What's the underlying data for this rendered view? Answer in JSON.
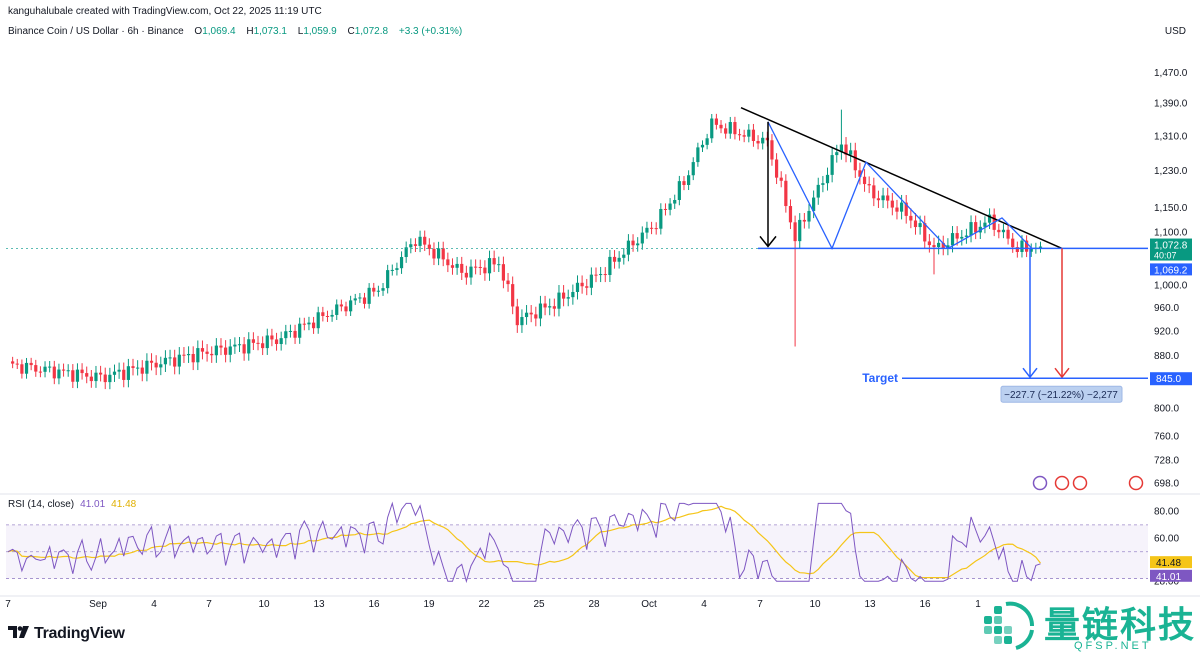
{
  "header": {
    "credit": "kanguhalubale created with TradingView.com, Oct 22, 2025 11:19 UTC",
    "symbol": "Binance Coin / US Dollar · 6h · Binance",
    "open_label": "O",
    "open": "1,069.4",
    "high_label": "H",
    "high": "1,073.1",
    "low_label": "L",
    "low": "1,059.9",
    "close_label": "C",
    "close": "1,072.8",
    "change": "+3.3 (+0.31%)",
    "currency": "USD"
  },
  "rsi": {
    "label": "RSI (14, close)",
    "value": "41.01",
    "ma_value": "41.48"
  },
  "annotations": {
    "target_label": "Target",
    "measure_label": "−227.7 (−21.22%) −2,277"
  },
  "branding": {
    "logo_text": "TradingView",
    "watermark_cn": "量链科技",
    "watermark_en": "QFSP.NET"
  },
  "colors": {
    "up": "#089981",
    "down": "#f23645",
    "pattern": "#2962ff",
    "rsi": "#7e57c2",
    "rsi_ma": "#f5c518"
  },
  "chart_data": [
    {
      "type": "candlestick",
      "title": "Binance Coin / US Dollar · 6h · Binance",
      "ylabel": "USD",
      "y_scale": "log",
      "ylim": [
        690,
        1560
      ],
      "y_ticks": [
        "1,470.0",
        "1,390.0",
        "1,310.0",
        "1,230.0",
        "1,150.0",
        "1,100.0",
        "1,000.0",
        "960.0",
        "920.0",
        "880.0",
        "845.0",
        "800.0",
        "760.0",
        "728.0",
        "698.0"
      ],
      "y_tick_values": [
        1470,
        1390,
        1310,
        1230,
        1150,
        1100,
        1000,
        960,
        920,
        880,
        845,
        800,
        760,
        728,
        698
      ],
      "x_ticks": [
        "7",
        "Sep",
        "4",
        "7",
        "10",
        "13",
        "16",
        "19",
        "22",
        "25",
        "28",
        "Oct",
        "4",
        "7",
        "10",
        "13",
        "16",
        "1"
      ],
      "price_labels": [
        {
          "label": "1,072.8",
          "value": 1072.8,
          "sublabel": "40:07",
          "kind": "last"
        },
        {
          "label": "1,069.2",
          "value": 1069.2,
          "kind": "neckline"
        },
        {
          "label": "845.0",
          "value": 845.0,
          "kind": "target"
        }
      ],
      "key_points": [
        {
          "index": 0,
          "value": 866
        },
        {
          "index": 20,
          "value": 846
        },
        {
          "index": 40,
          "value": 882
        },
        {
          "index": 58,
          "value": 906
        },
        {
          "index": 80,
          "value": 992
        },
        {
          "index": 88,
          "value": 1088
        },
        {
          "index": 98,
          "value": 1023
        },
        {
          "index": 106,
          "value": 1042
        },
        {
          "index": 110,
          "value": 938
        },
        {
          "index": 118,
          "value": 968
        },
        {
          "index": 128,
          "value": 1022
        },
        {
          "index": 140,
          "value": 1120
        },
        {
          "index": 146,
          "value": 1205
        },
        {
          "index": 152,
          "value": 1340
        },
        {
          "index": 164,
          "value": 1295
        },
        {
          "index": 170,
          "value": 1090
        },
        {
          "index": 176,
          "value": 1210
        },
        {
          "index": 180,
          "value": 1295
        },
        {
          "index": 186,
          "value": 1185
        },
        {
          "index": 194,
          "value": 1140
        },
        {
          "index": 200,
          "value": 1068
        },
        {
          "index": 208,
          "value": 1105
        },
        {
          "index": 212,
          "value": 1125
        },
        {
          "index": 218,
          "value": 1068
        },
        {
          "index": 222,
          "value": 1072.8
        }
      ],
      "pattern": {
        "descending_trendline": [
          1380,
          1069.2
        ],
        "neckline": 1069.2,
        "target": 845.0
      }
    },
    {
      "type": "line",
      "title": "RSI (14, close)",
      "ylim": [
        20,
        90
      ],
      "y_ticks": [
        "80.00",
        "60.00",
        "28.00"
      ],
      "y_tick_values": [
        80,
        60,
        28
      ],
      "bands": [
        70,
        50,
        30
      ],
      "series": [
        {
          "name": "RSI",
          "last": 41.01
        },
        {
          "name": "RSI MA",
          "last": 41.48
        }
      ]
    }
  ]
}
